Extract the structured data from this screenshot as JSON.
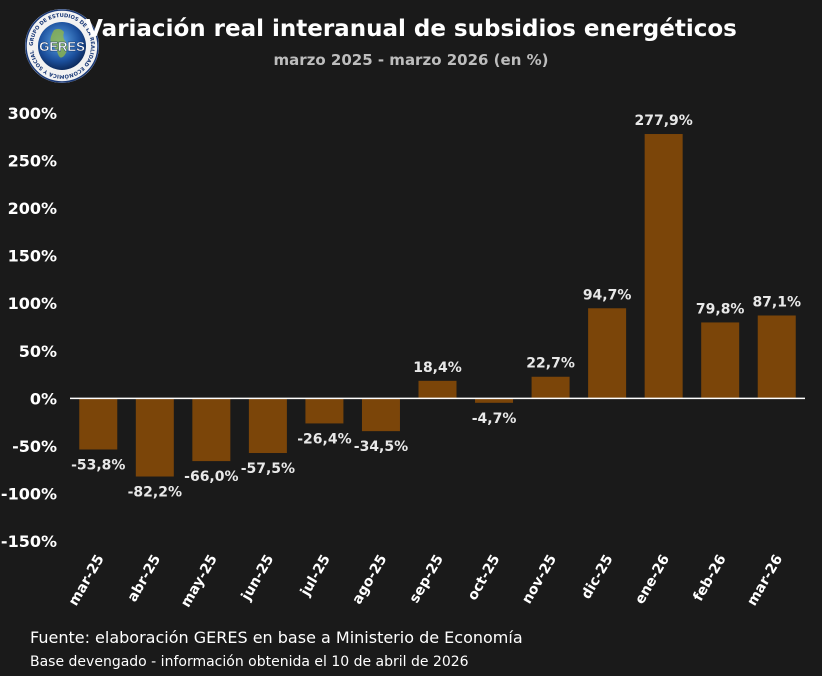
{
  "header": {
    "title": "Variación real interanual de subsidios energéticos",
    "subtitle": "marzo 2025 - marzo 2026 (en %)",
    "logo_text": "GERES",
    "logo_ring_text": "GRUPO DE ESTUDIOS DE LA REALIDAD ECONÓMICA Y SOCIAL"
  },
  "footer": {
    "source": "Fuente: elaboración GERES en base a Ministerio de Economía",
    "note": "Base devengado - información obtenida el 10 de abril de 2026"
  },
  "colors": {
    "bar": "#7b4509",
    "background": "#1a1a1a",
    "axis": "#ffffff",
    "subtitle": "#bdbdbd"
  },
  "chart_data": {
    "type": "bar",
    "title": "Variación real interanual de subsidios energéticos",
    "subtitle": "marzo 2025 - marzo 2026 (en %)",
    "xlabel": "",
    "ylabel": "",
    "ylim": [
      -150,
      300
    ],
    "y_ticks": [
      300,
      250,
      200,
      150,
      100,
      50,
      0,
      -50,
      -100,
      -150
    ],
    "y_tick_labels": [
      "300%",
      "250%",
      "200%",
      "150%",
      "100%",
      "50%",
      "0%",
      "-50%",
      "-100%",
      "-150%"
    ],
    "grid": false,
    "legend": "none",
    "categories": [
      "mar-25",
      "abr-25",
      "may-25",
      "jun-25",
      "jul-25",
      "ago-25",
      "sep-25",
      "oct-25",
      "nov-25",
      "dic-25",
      "ene-26",
      "feb-26",
      "mar-26"
    ],
    "values": [
      -53.8,
      -82.2,
      -66.0,
      -57.5,
      -26.4,
      -34.5,
      18.4,
      -4.7,
      22.7,
      94.7,
      277.9,
      79.8,
      87.1
    ],
    "value_labels": [
      "-53,8%",
      "-82,2%",
      "-66,0%",
      "-57,5%",
      "-26,4%",
      "-34,5%",
      "18,4%",
      "-4,7%",
      "22,7%",
      "94,7%",
      "277,9%",
      "79,8%",
      "87,1%"
    ]
  }
}
